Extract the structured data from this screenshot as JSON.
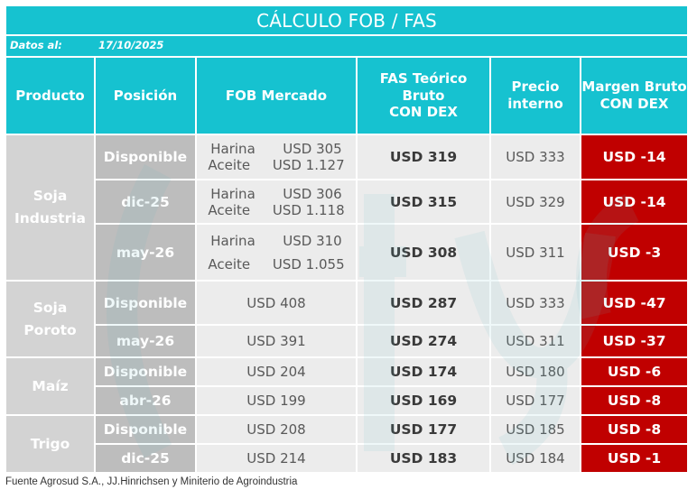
{
  "title": "CÁLCULO FOB / FAS",
  "date_label": "Datos al:",
  "date_value": "17/10/2025",
  "headers": {
    "producto": "Producto",
    "posicion": "Posición",
    "fob": "FOB Mercado",
    "fas_l1": "FAS Teórico Bruto",
    "fas_l2": "CON DEX",
    "precio_l1": "Precio",
    "precio_l2": "interno",
    "margen_l1": "Margen Bruto",
    "margen_l2": "CON DEX"
  },
  "products": {
    "soja_industria": [
      "Soja",
      "Industria"
    ],
    "soja_poroto": [
      "Soja",
      "Poroto"
    ],
    "maiz": "Maíz",
    "trigo": "Trigo"
  },
  "rows": [
    {
      "pos": "Disponible",
      "fob": [
        {
          "name": "Harina",
          "val": "USD 305"
        },
        {
          "name": "Aceite",
          "val": "USD 1.127"
        }
      ],
      "fas": "USD 319",
      "pi": "USD 333",
      "mg": "USD -14"
    },
    {
      "pos": "dic-25",
      "fob": [
        {
          "name": "Harina",
          "val": "USD 306"
        },
        {
          "name": "Aceite",
          "val": "USD 1.118"
        }
      ],
      "fas": "USD 315",
      "pi": "USD 329",
      "mg": "USD -14"
    },
    {
      "pos": "may-26",
      "fob": [
        {
          "name": "Harina",
          "val": "USD 310"
        },
        {
          "name": "Aceite",
          "val": "USD 1.055"
        }
      ],
      "fas": "USD 308",
      "pi": "USD 311",
      "mg": "USD -3"
    },
    {
      "pos": "Disponible",
      "fob": "USD 408",
      "fas": "USD 287",
      "pi": "USD 333",
      "mg": "USD -47"
    },
    {
      "pos": "may-26",
      "fob": "USD 391",
      "fas": "USD 274",
      "pi": "USD 311",
      "mg": "USD -37"
    },
    {
      "pos": "Disponible",
      "fob": "USD 204",
      "fas": "USD 174",
      "pi": "USD 180",
      "mg": "USD -6"
    },
    {
      "pos": "abr-26",
      "fob": "USD 199",
      "fas": "USD 169",
      "pi": "USD 177",
      "mg": "USD -8"
    },
    {
      "pos": "Disponible",
      "fob": "USD 208",
      "fas": "USD 177",
      "pi": "USD 185",
      "mg": "USD -8"
    },
    {
      "pos": "dic-25",
      "fob": "USD 214",
      "fas": "USD 183",
      "pi": "USD 184",
      "mg": "USD -1"
    }
  ],
  "footer": "Fuente Agrosud S.A., JJ.Hinrichsen y Miniterio de Agroindustria",
  "colors": {
    "header": "#16c2d0",
    "margin": "#c00000",
    "product": "#d3d3d3",
    "position": "#bdbdbd",
    "cell": "#ececec"
  }
}
